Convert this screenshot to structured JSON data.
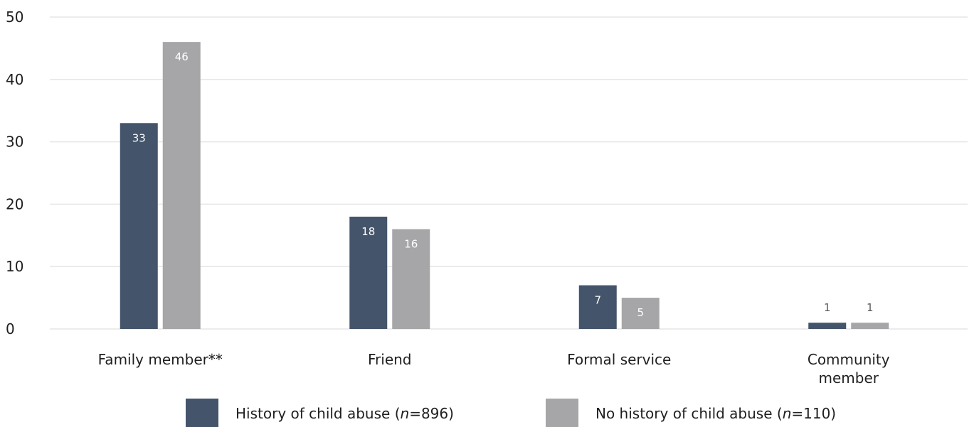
{
  "chart_data": {
    "type": "bar",
    "categories": [
      [
        "Family member**"
      ],
      [
        "Friend"
      ],
      [
        "Formal service"
      ],
      [
        "Community",
        "member"
      ]
    ],
    "series": [
      {
        "name_prefix": "History of child abuse (",
        "name_italic": "n",
        "name_suffix": "=896)",
        "color": "#44546a",
        "label_color": "#ffffff",
        "values": [
          33,
          18,
          7,
          1
        ]
      },
      {
        "name_prefix": "No history of child abuse (",
        "name_italic": "n",
        "name_suffix": "=110)",
        "color": "#a6a6a8",
        "label_color": "#ffffff",
        "values": [
          46,
          16,
          5,
          1
        ]
      }
    ],
    "ylim": [
      0,
      50
    ],
    "yticks": [
      "0",
      "10",
      "20",
      "30",
      "40",
      "50"
    ],
    "grid": true,
    "legend": "bottom",
    "outside_label_color": "#595959",
    "grid_color": "#e6e6e6"
  }
}
